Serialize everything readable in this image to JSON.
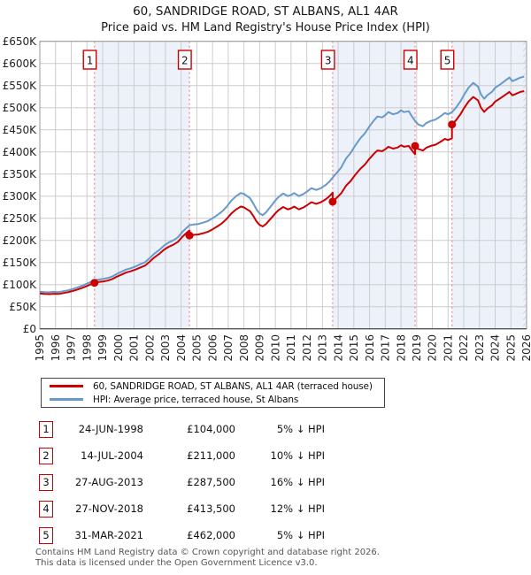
{
  "title": "60, SANDRIDGE ROAD, ST ALBANS, AL1 4AR",
  "subtitle": "Price paid vs. HM Land Registry's House Price Index (HPI)",
  "chart_data": {
    "type": "line",
    "title": "60, SANDRIDGE ROAD, ST ALBANS, AL1 4AR",
    "subtitle": "Price paid vs. HM Land Registry's House Price Index (HPI)",
    "x_range": [
      1995,
      2026
    ],
    "y_range": [
      0,
      650000
    ],
    "grid": true,
    "legend_position": "below",
    "y_ticks": [
      "£0",
      "£50K",
      "£100K",
      "£150K",
      "£200K",
      "£250K",
      "£300K",
      "£350K",
      "£400K",
      "£450K",
      "£500K",
      "£550K",
      "£600K",
      "£650K"
    ],
    "x_ticks": [
      "1995",
      "1996",
      "1997",
      "1998",
      "1999",
      "2000",
      "2001",
      "2002",
      "2003",
      "2004",
      "2005",
      "2006",
      "2007",
      "2008",
      "2009",
      "2010",
      "2011",
      "2012",
      "2013",
      "2014",
      "2015",
      "2016",
      "2017",
      "2018",
      "2019",
      "2020",
      "2021",
      "2022",
      "2023",
      "2024",
      "2025",
      "2026"
    ],
    "colors": {
      "price": "#cc0000",
      "hpi": "#6699cc",
      "band": "#edf2fa",
      "grid": "#cccccc",
      "frame": "#999999",
      "sale_line": "#ee8888",
      "badge_text": "#111111"
    },
    "bands": [
      [
        1998.48,
        2004.53
      ],
      [
        2013.65,
        2018.9
      ],
      [
        2021.25,
        2026
      ]
    ],
    "hatch_range": [
      2025.78,
      2026
    ],
    "sales": [
      {
        "n": 1,
        "year": 1998.48,
        "price": 104000
      },
      {
        "n": 2,
        "year": 2004.53,
        "price": 211000
      },
      {
        "n": 3,
        "year": 2013.65,
        "price": 287500
      },
      {
        "n": 4,
        "year": 2018.9,
        "price": 413500
      },
      {
        "n": 5,
        "year": 2021.25,
        "price": 462000
      }
    ],
    "series": [
      {
        "name": "60, SANDRIDGE ROAD, ST ALBANS, AL1 4AR (terraced house)",
        "color": "#cc0000",
        "points": [
          [
            1995.0,
            79800
          ],
          [
            1995.3,
            78900
          ],
          [
            1995.6,
            78400
          ],
          [
            1995.9,
            79300
          ],
          [
            1996.2,
            78900
          ],
          [
            1996.5,
            80800
          ],
          [
            1996.8,
            82700
          ],
          [
            1997.1,
            85500
          ],
          [
            1997.4,
            88800
          ],
          [
            1997.7,
            92600
          ],
          [
            1998.0,
            96900
          ],
          [
            1998.25,
            100700
          ],
          [
            1998.48,
            104000
          ],
          [
            1998.7,
            105500
          ],
          [
            1999.0,
            106900
          ],
          [
            1999.3,
            108800
          ],
          [
            1999.6,
            112100
          ],
          [
            1999.9,
            117800
          ],
          [
            2000.2,
            122600
          ],
          [
            2000.5,
            127300
          ],
          [
            2000.8,
            130200
          ],
          [
            2001.1,
            134000
          ],
          [
            2001.4,
            138700
          ],
          [
            2001.7,
            143000
          ],
          [
            2002.0,
            152000
          ],
          [
            2002.3,
            161500
          ],
          [
            2002.6,
            169100
          ],
          [
            2002.9,
            178600
          ],
          [
            2003.2,
            185300
          ],
          [
            2003.5,
            190000
          ],
          [
            2003.8,
            196700
          ],
          [
            2004.1,
            209000
          ],
          [
            2004.4,
            218500
          ],
          [
            2004.53,
            222300
          ],
          [
            2004.53,
            211000
          ],
          [
            2004.8,
            212400
          ],
          [
            2005.1,
            213300
          ],
          [
            2005.4,
            216000
          ],
          [
            2005.7,
            219200
          ],
          [
            2006.0,
            225000
          ],
          [
            2006.3,
            231300
          ],
          [
            2006.6,
            238500
          ],
          [
            2006.9,
            248400
          ],
          [
            2007.2,
            261000
          ],
          [
            2007.5,
            270000
          ],
          [
            2007.8,
            276300
          ],
          [
            2008.0,
            274500
          ],
          [
            2008.2,
            270000
          ],
          [
            2008.4,
            265500
          ],
          [
            2008.6,
            254700
          ],
          [
            2008.8,
            243000
          ],
          [
            2009.0,
            234900
          ],
          [
            2009.2,
            231300
          ],
          [
            2009.4,
            236700
          ],
          [
            2009.6,
            244800
          ],
          [
            2009.8,
            252900
          ],
          [
            2010.0,
            261000
          ],
          [
            2010.2,
            268200
          ],
          [
            2010.5,
            275400
          ],
          [
            2010.8,
            270000
          ],
          [
            2011.0,
            272300
          ],
          [
            2011.2,
            276300
          ],
          [
            2011.5,
            270000
          ],
          [
            2011.8,
            274500
          ],
          [
            2012.0,
            279000
          ],
          [
            2012.3,
            286200
          ],
          [
            2012.6,
            282600
          ],
          [
            2012.9,
            286200
          ],
          [
            2013.2,
            292500
          ],
          [
            2013.45,
            299700
          ],
          [
            2013.65,
            307800
          ],
          [
            2013.65,
            287500
          ],
          [
            2013.9,
            295700
          ],
          [
            2014.2,
            306600
          ],
          [
            2014.5,
            323400
          ],
          [
            2014.8,
            334300
          ],
          [
            2015.1,
            348600
          ],
          [
            2015.4,
            361200
          ],
          [
            2015.7,
            371300
          ],
          [
            2016.0,
            384700
          ],
          [
            2016.3,
            396500
          ],
          [
            2016.5,
            403200
          ],
          [
            2016.8,
            401500
          ],
          [
            2017.0,
            405700
          ],
          [
            2017.2,
            411600
          ],
          [
            2017.5,
            407400
          ],
          [
            2017.8,
            410000
          ],
          [
            2018.0,
            415000
          ],
          [
            2018.2,
            411600
          ],
          [
            2018.5,
            413300
          ],
          [
            2018.7,
            403200
          ],
          [
            2018.9,
            394800
          ],
          [
            2018.9,
            413500
          ],
          [
            2019.1,
            406500
          ],
          [
            2019.4,
            403000
          ],
          [
            2019.6,
            409200
          ],
          [
            2019.9,
            413600
          ],
          [
            2020.2,
            416200
          ],
          [
            2020.5,
            422400
          ],
          [
            2020.8,
            429400
          ],
          [
            2021.0,
            426800
          ],
          [
            2021.25,
            431200
          ],
          [
            2021.25,
            462000
          ],
          [
            2021.5,
            471400
          ],
          [
            2021.8,
            485600
          ],
          [
            2022.0,
            497800
          ],
          [
            2022.3,
            513900
          ],
          [
            2022.6,
            524200
          ],
          [
            2022.9,
            516700
          ],
          [
            2023.1,
            499700
          ],
          [
            2023.3,
            490300
          ],
          [
            2023.5,
            497800
          ],
          [
            2023.8,
            505400
          ],
          [
            2024.0,
            513900
          ],
          [
            2024.3,
            520500
          ],
          [
            2024.6,
            528000
          ],
          [
            2024.9,
            535500
          ],
          [
            2025.1,
            528000
          ],
          [
            2025.3,
            530800
          ],
          [
            2025.6,
            535500
          ],
          [
            2025.85,
            537400
          ]
        ]
      },
      {
        "name": "HPI: Average price, terraced house, St Albans",
        "color": "#6699cc",
        "points": [
          [
            1995.0,
            84000
          ],
          [
            1995.3,
            83000
          ],
          [
            1995.6,
            82500
          ],
          [
            1995.9,
            83500
          ],
          [
            1996.2,
            83000
          ],
          [
            1996.5,
            85000
          ],
          [
            1996.8,
            87000
          ],
          [
            1997.1,
            90000
          ],
          [
            1997.4,
            93500
          ],
          [
            1997.7,
            97500
          ],
          [
            1998.0,
            102000
          ],
          [
            1998.25,
            106000
          ],
          [
            1998.48,
            109500
          ],
          [
            1998.7,
            111000
          ],
          [
            1999.0,
            112500
          ],
          [
            1999.3,
            114500
          ],
          [
            1999.6,
            118000
          ],
          [
            1999.9,
            124000
          ],
          [
            2000.2,
            129000
          ],
          [
            2000.5,
            134000
          ],
          [
            2000.8,
            137000
          ],
          [
            2001.1,
            141000
          ],
          [
            2001.4,
            146000
          ],
          [
            2001.7,
            150500
          ],
          [
            2002.0,
            160000
          ],
          [
            2002.3,
            170000
          ],
          [
            2002.6,
            178000
          ],
          [
            2002.9,
            188000
          ],
          [
            2003.2,
            195000
          ],
          [
            2003.5,
            200000
          ],
          [
            2003.8,
            207000
          ],
          [
            2004.1,
            220000
          ],
          [
            2004.4,
            230000
          ],
          [
            2004.53,
            234000
          ],
          [
            2004.8,
            236000
          ],
          [
            2005.1,
            237000
          ],
          [
            2005.4,
            240000
          ],
          [
            2005.7,
            243500
          ],
          [
            2006.0,
            250000
          ],
          [
            2006.3,
            257000
          ],
          [
            2006.6,
            265000
          ],
          [
            2006.9,
            276000
          ],
          [
            2007.2,
            290000
          ],
          [
            2007.5,
            300000
          ],
          [
            2007.8,
            307000
          ],
          [
            2008.0,
            305000
          ],
          [
            2008.2,
            300000
          ],
          [
            2008.4,
            295000
          ],
          [
            2008.6,
            283000
          ],
          [
            2008.8,
            270000
          ],
          [
            2009.0,
            261000
          ],
          [
            2009.2,
            257000
          ],
          [
            2009.4,
            263000
          ],
          [
            2009.6,
            272000
          ],
          [
            2009.8,
            281000
          ],
          [
            2010.0,
            290000
          ],
          [
            2010.2,
            298000
          ],
          [
            2010.5,
            306000
          ],
          [
            2010.8,
            300000
          ],
          [
            2011.0,
            302500
          ],
          [
            2011.2,
            307000
          ],
          [
            2011.5,
            300000
          ],
          [
            2011.8,
            305000
          ],
          [
            2012.0,
            310000
          ],
          [
            2012.3,
            318000
          ],
          [
            2012.6,
            314000
          ],
          [
            2012.9,
            318000
          ],
          [
            2013.2,
            325000
          ],
          [
            2013.45,
            333000
          ],
          [
            2013.65,
            342000
          ],
          [
            2013.9,
            352000
          ],
          [
            2014.2,
            365000
          ],
          [
            2014.5,
            385000
          ],
          [
            2014.8,
            398000
          ],
          [
            2015.1,
            415000
          ],
          [
            2015.4,
            430000
          ],
          [
            2015.7,
            442000
          ],
          [
            2016.0,
            458000
          ],
          [
            2016.3,
            472000
          ],
          [
            2016.5,
            480000
          ],
          [
            2016.8,
            478000
          ],
          [
            2017.0,
            483000
          ],
          [
            2017.2,
            490000
          ],
          [
            2017.5,
            485000
          ],
          [
            2017.8,
            488000
          ],
          [
            2018.0,
            494000
          ],
          [
            2018.2,
            490000
          ],
          [
            2018.5,
            492000
          ],
          [
            2018.7,
            480000
          ],
          [
            2018.9,
            470000
          ],
          [
            2019.1,
            462000
          ],
          [
            2019.4,
            458000
          ],
          [
            2019.6,
            465000
          ],
          [
            2019.9,
            470000
          ],
          [
            2020.2,
            473000
          ],
          [
            2020.5,
            480000
          ],
          [
            2020.8,
            488000
          ],
          [
            2021.0,
            485000
          ],
          [
            2021.25,
            490000
          ],
          [
            2021.5,
            500000
          ],
          [
            2021.8,
            515000
          ],
          [
            2022.0,
            528000
          ],
          [
            2022.3,
            545000
          ],
          [
            2022.6,
            556000
          ],
          [
            2022.9,
            548000
          ],
          [
            2023.1,
            530000
          ],
          [
            2023.3,
            520000
          ],
          [
            2023.5,
            528000
          ],
          [
            2023.8,
            536000
          ],
          [
            2024.0,
            545000
          ],
          [
            2024.3,
            552000
          ],
          [
            2024.6,
            560000
          ],
          [
            2024.9,
            568000
          ],
          [
            2025.1,
            560000
          ],
          [
            2025.3,
            563000
          ],
          [
            2025.6,
            568000
          ],
          [
            2025.85,
            570000
          ]
        ]
      }
    ]
  },
  "legend": [
    {
      "label": "60, SANDRIDGE ROAD, ST ALBANS, AL1 4AR (terraced house)",
      "color": "#cc0000"
    },
    {
      "label": "HPI: Average price, terraced house, St Albans",
      "color": "#6699cc"
    }
  ],
  "table": {
    "rows": [
      {
        "n": "1",
        "date": "24-JUN-1998",
        "price": "£104,000",
        "delta": "5% ↓ HPI"
      },
      {
        "n": "2",
        "date": "14-JUL-2004",
        "price": "£211,000",
        "delta": "10% ↓ HPI"
      },
      {
        "n": "3",
        "date": "27-AUG-2013",
        "price": "£287,500",
        "delta": "16% ↓ HPI"
      },
      {
        "n": "4",
        "date": "27-NOV-2018",
        "price": "£413,500",
        "delta": "12% ↓ HPI"
      },
      {
        "n": "5",
        "date": "31-MAR-2021",
        "price": "£462,000",
        "delta": "5% ↓ HPI"
      }
    ]
  },
  "footer": {
    "line1": "Contains HM Land Registry data © Crown copyright and database right 2026.",
    "line2": "This data is licensed under the Open Government Licence v3.0."
  }
}
